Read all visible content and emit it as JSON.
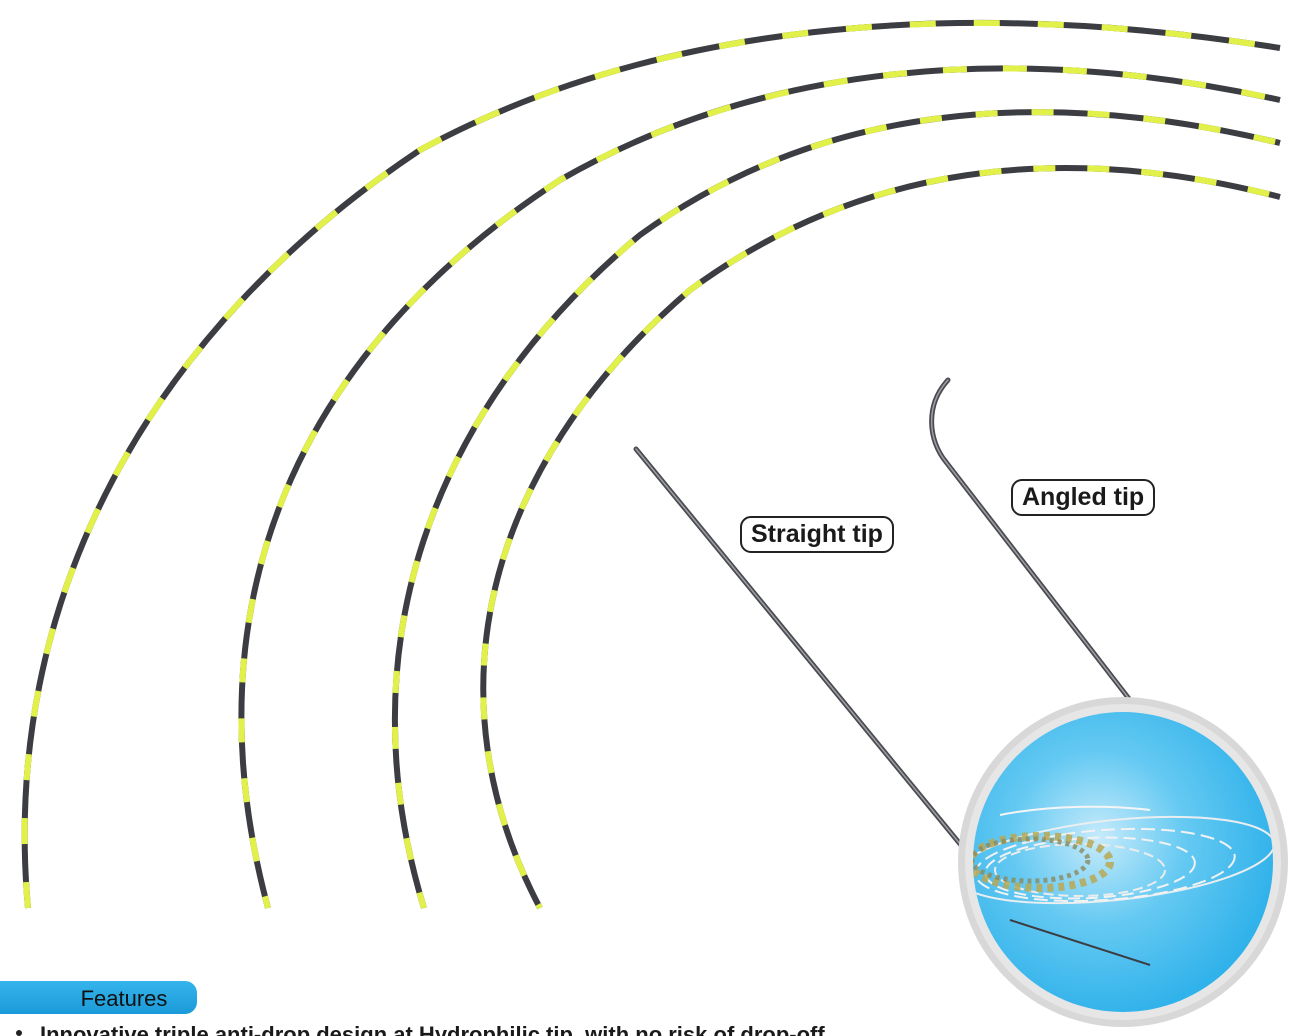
{
  "labels": {
    "straight_tip": "Straight tip",
    "angled_tip": "Angled tip"
  },
  "features": {
    "title": "Features",
    "items": [
      "Innovative triple anti-drop design at Hydrophilic tip, with no risk of drop-off"
    ]
  },
  "colors": {
    "wire_dark": "#3b3d42",
    "wire_yellow": "#e2f04a",
    "circle_blue": "#3cb9ee",
    "circle_ring": "#d8d8d8",
    "badge_blue": "#2aa6e2"
  }
}
